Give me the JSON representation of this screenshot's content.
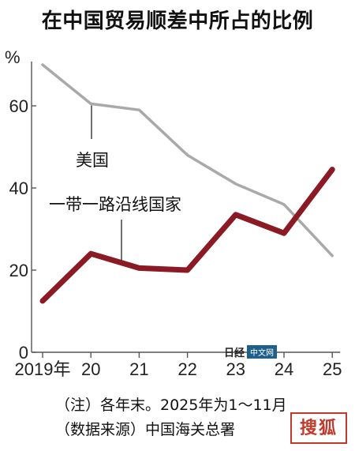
{
  "title": "在中国贸易顺差中所占的比例",
  "chart_data": {
    "type": "line",
    "title": "在中国贸易顺差中所占的比例",
    "ylabel": "%",
    "xlabel": "",
    "categories": [
      "2019年",
      "20",
      "21",
      "22",
      "23",
      "24",
      "25"
    ],
    "ylim": [
      0,
      70
    ],
    "yticks": [
      0,
      20,
      40,
      60
    ],
    "grid": false,
    "series": [
      {
        "name": "美国",
        "color": "#a9a9a9",
        "values": [
          70,
          60.5,
          59,
          48,
          41,
          36,
          23.5
        ]
      },
      {
        "name": "一带一路沿线国家",
        "color": "#8b1a24",
        "values": [
          12.5,
          24,
          20.5,
          20,
          33.5,
          29,
          44.5
        ]
      }
    ]
  },
  "notes": [
    "（注）各年末。2025年为1～11月",
    "（数据来源）中国海关总署"
  ],
  "watermark": {
    "logo": "日经",
    "tag": "中文网"
  },
  "stamp": "搜狐"
}
